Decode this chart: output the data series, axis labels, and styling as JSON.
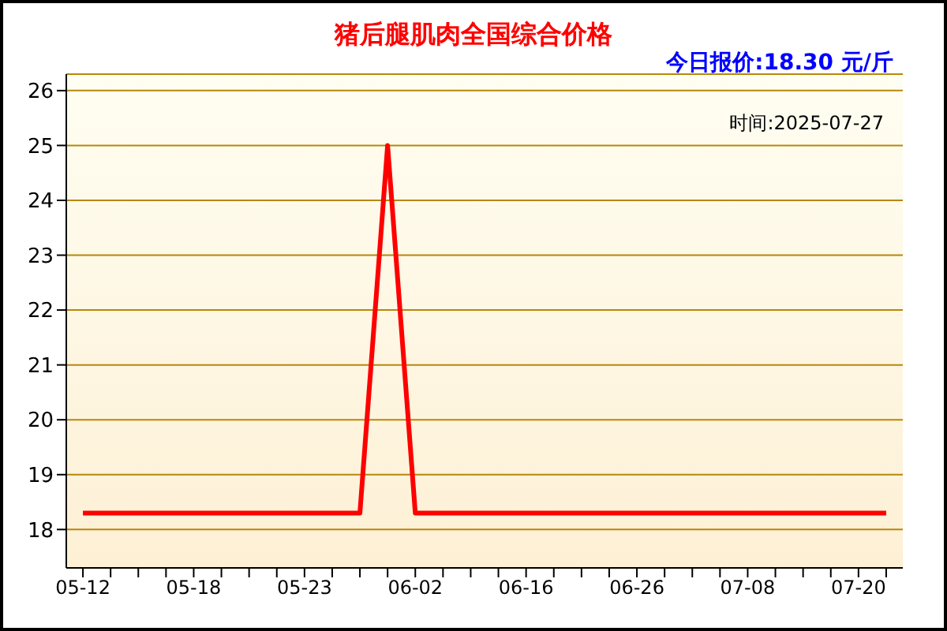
{
  "chart_data": {
    "type": "line",
    "title": "猪后腿肌肉全国综合价格",
    "subtitle": "今日报价:18.30 元/斤",
    "annotations": [
      "时间:2025-07-27"
    ],
    "categories": [
      "05-12",
      null,
      null,
      null,
      "05-18",
      null,
      null,
      null,
      "05-23",
      null,
      null,
      null,
      "06-02",
      null,
      null,
      null,
      "06-16",
      null,
      null,
      null,
      "06-26",
      null,
      null,
      null,
      "07-08",
      null,
      null,
      null,
      "07-20",
      null
    ],
    "series": [
      {
        "color": "#ff0000",
        "values": [
          18.3,
          18.3,
          18.3,
          18.3,
          18.3,
          18.3,
          18.3,
          18.3,
          18.3,
          18.3,
          18.3,
          25,
          18.3,
          18.3,
          18.3,
          18.3,
          18.3,
          18.3,
          18.3,
          18.3,
          18.3,
          18.3,
          18.3,
          18.3,
          18.3,
          18.3,
          18.3,
          18.3,
          18.3,
          18.3
        ]
      }
    ],
    "ylim": [
      17.3,
      26.3
    ],
    "yticks": [
      18,
      19,
      20,
      21,
      22,
      23,
      24,
      25,
      26
    ],
    "grid": "y",
    "marker": "none",
    "line_style": "solid"
  }
}
